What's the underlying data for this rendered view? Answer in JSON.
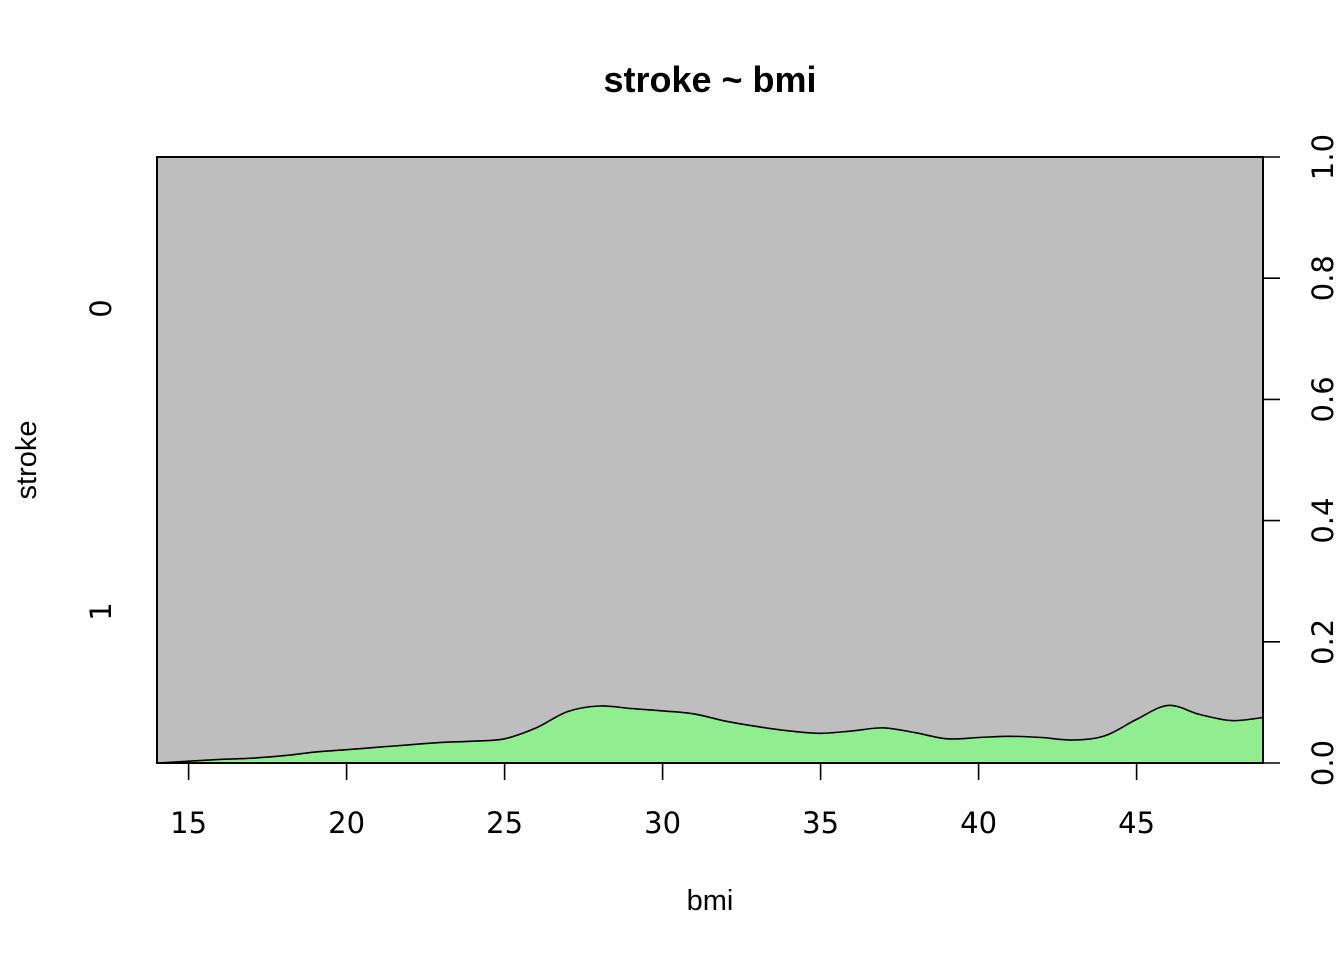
{
  "chart_data": {
    "type": "area",
    "subtype": "conditional density plot",
    "title": "stroke ~ bmi",
    "xlabel": "bmi",
    "ylabel": "stroke",
    "xlim": [
      14,
      49
    ],
    "ylim": [
      0,
      1
    ],
    "x_ticks": [
      15,
      20,
      25,
      30,
      35,
      40,
      45
    ],
    "y_category_labels": [
      "0",
      "1"
    ],
    "right_axis_ticks": [
      "0.0",
      "0.2",
      "0.4",
      "0.6",
      "0.8",
      "1.0"
    ],
    "colors": {
      "stroke_0": "#bebebe",
      "stroke_1": "#90ee90"
    },
    "series": [
      {
        "name": "1",
        "x": [
          14.0,
          15.0,
          16.0,
          17.0,
          18.0,
          19.0,
          20.0,
          21.0,
          22.0,
          23.0,
          24.0,
          25.0,
          26.0,
          27.0,
          28.0,
          29.0,
          30.0,
          31.0,
          32.0,
          33.0,
          34.0,
          35.0,
          36.0,
          37.0,
          38.0,
          39.0,
          40.0,
          41.0,
          42.0,
          43.0,
          44.0,
          45.0,
          46.0,
          47.0,
          48.0,
          49.0
        ],
        "values": [
          0.0,
          0.003,
          0.006,
          0.008,
          0.012,
          0.018,
          0.022,
          0.026,
          0.03,
          0.034,
          0.036,
          0.04,
          0.058,
          0.085,
          0.094,
          0.09,
          0.086,
          0.081,
          0.069,
          0.06,
          0.053,
          0.049,
          0.053,
          0.058,
          0.05,
          0.04,
          0.042,
          0.044,
          0.042,
          0.038,
          0.045,
          0.072,
          0.095,
          0.08,
          0.07,
          0.075
        ]
      }
    ]
  }
}
